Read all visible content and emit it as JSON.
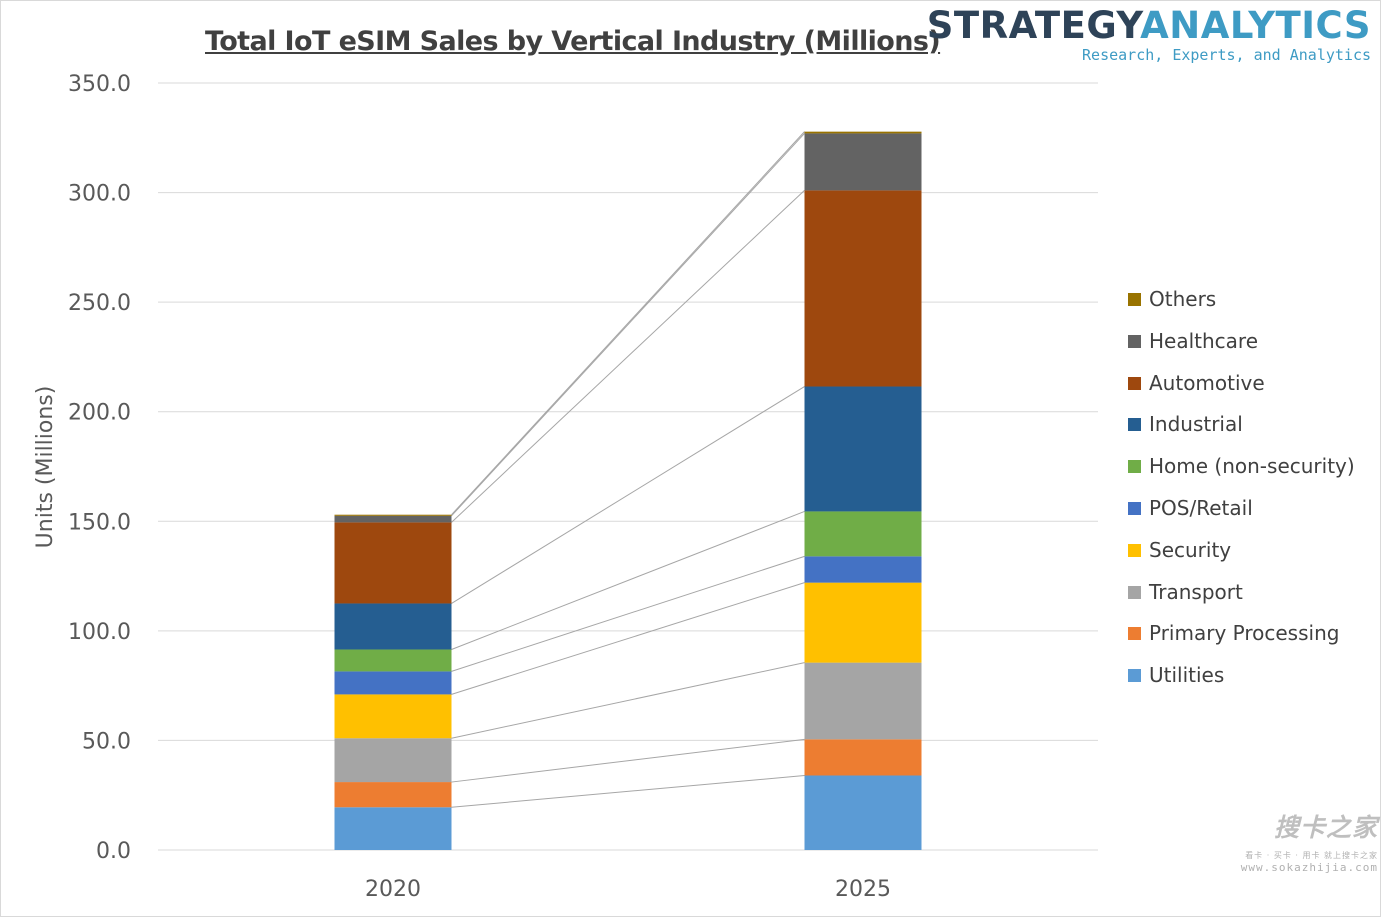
{
  "branding": {
    "logo_word1": "STRATEGY",
    "logo_word2": "ANALYTICS",
    "logo_tagline": "Research, Experts, and Analytics",
    "watermark": "搜卡之家",
    "watermark_tagline": "看卡 · 买卡 · 用卡 就上搜卡之家",
    "watermark_url": "www.sokazhijia.com"
  },
  "chart_data": {
    "type": "bar",
    "stacked": true,
    "title": "Total IoT eSIM Sales by Vertical Industry (Millions)",
    "xlabel": "",
    "ylabel": "Units (Millions)",
    "ylim": [
      0,
      350
    ],
    "yticks": [
      "0.0",
      "50.0",
      "100.0",
      "150.0",
      "200.0",
      "250.0",
      "300.0",
      "350.0"
    ],
    "ytick_values": [
      0,
      50,
      100,
      150,
      200,
      250,
      300,
      350
    ],
    "grid": true,
    "legend_position": "right",
    "series_lines": true,
    "categories": [
      "2020",
      "2025"
    ],
    "series": [
      {
        "name": "Utilities",
        "color": "#5b9bd5",
        "values": [
          19.5,
          34.0
        ]
      },
      {
        "name": "Primary Processing",
        "color": "#ed7d31",
        "values": [
          11.5,
          16.5
        ]
      },
      {
        "name": "Transport",
        "color": "#a5a5a5",
        "values": [
          20.0,
          35.0
        ]
      },
      {
        "name": "Security",
        "color": "#ffc000",
        "values": [
          20.0,
          36.5
        ]
      },
      {
        "name": "POS/Retail",
        "color": "#4472c4",
        "values": [
          10.5,
          12.0
        ]
      },
      {
        "name": "Home (non-security)",
        "color": "#70ad47",
        "values": [
          10.0,
          20.5
        ]
      },
      {
        "name": "Industrial",
        "color": "#255e91",
        "values": [
          21.0,
          57.0
        ]
      },
      {
        "name": "Automotive",
        "color": "#9e480e",
        "values": [
          37.0,
          89.5
        ]
      },
      {
        "name": "Healthcare",
        "color": "#636363",
        "values": [
          3.0,
          26.0
        ]
      },
      {
        "name": "Others",
        "color": "#997300",
        "values": [
          0.5,
          0.8
        ]
      }
    ]
  }
}
